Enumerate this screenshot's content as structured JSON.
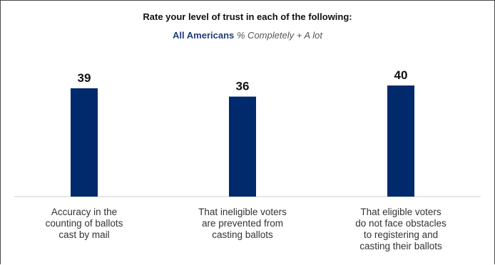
{
  "colors": {
    "bar": "#002a6c",
    "axis": "#cccccc",
    "label": "#111111",
    "accent": "#1f3d7a"
  },
  "chart_data": {
    "type": "bar",
    "title": "Rate your level of trust in each of the following:",
    "subtitle_group": "All Americans",
    "subtitle_metric": "% Completely + A lot",
    "categories": [
      "Accuracy in the counting of ballots cast by mail",
      "That ineligible voters are prevented from casting ballots",
      "That eligible voters do not face obstacles to registering and casting their ballots"
    ],
    "category_lines": [
      [
        "Accuracy in the",
        "counting of ballots",
        "cast by mail"
      ],
      [
        "That ineligible voters",
        "are prevented from",
        "casting ballots"
      ],
      [
        "That eligible voters",
        "do not face obstacles",
        "to registering and",
        "casting their ballots"
      ]
    ],
    "values": [
      39,
      36,
      40
    ],
    "ylim": [
      0,
      100
    ]
  }
}
